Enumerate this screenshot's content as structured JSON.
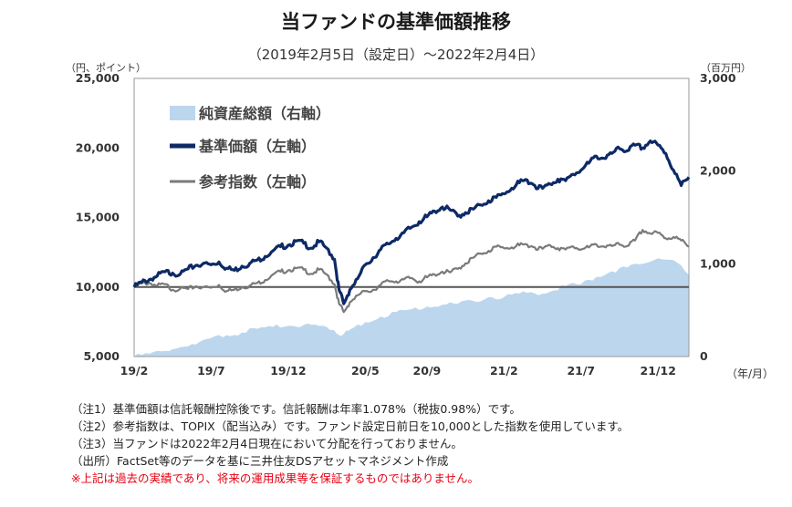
{
  "title": "当ファンドの基準価額推移",
  "subtitle": "（2019年2月5日（設定日）～2022年2月4日）",
  "left_unit": "（円、ポイント）",
  "right_unit": "（百万円）",
  "x_unit": "（年/月）",
  "notes": [
    "（注1）基準価額は信託報酬控除後です。信託報酬は年率1.078%（税抜0.98%）です。",
    "（注2）参考指数は、TOPIX（配当込み）です。ファンド設定日前日を10,000とした指数を使用しています。",
    "（注3）当ファンドは2022年2月4日現在において分配を行っておりません。",
    "（出所）FactSet等のデータを基に三井住友DSアセットマネジメント作成"
  ],
  "disclaimer": "※上記は過去の実績であり、将来の運用成果等を保証するものではありません。",
  "colors": {
    "nav": "#0d2a66",
    "index": "#7a7a7a",
    "assets": "#bcd6ee",
    "baseline": "#555555"
  },
  "chart_data": {
    "type": "line",
    "x_tick_labels": [
      "19/2",
      "19/7",
      "19/12",
      "20/5",
      "20/9",
      "21/2",
      "21/7",
      "21/12"
    ],
    "x_tick_positions": [
      0,
      5,
      10,
      15,
      19,
      24,
      29,
      34
    ],
    "x_range": [
      0,
      36
    ],
    "y_left": {
      "ticks": [
        "5,000",
        "10,000",
        "15,000",
        "20,000",
        "25,000"
      ],
      "tick_values": [
        5000,
        10000,
        15000,
        20000,
        25000
      ],
      "range": [
        5000,
        25000
      ]
    },
    "y_right": {
      "ticks": [
        "0",
        "1,000",
        "2,000",
        "3,000"
      ],
      "tick_values": [
        0,
        1000,
        2000,
        3000
      ],
      "range": [
        0,
        3000
      ]
    },
    "reference_line": 10000,
    "legend": [
      "純資産総額（右軸）",
      "基準価額（左軸）",
      "参考指数（左軸）"
    ],
    "series": [
      {
        "name": "基準価額（左軸）",
        "axis": "left",
        "kind": "line",
        "x": [
          0,
          0.5,
          1,
          1.5,
          2,
          2.5,
          3,
          3.5,
          4,
          4.5,
          5,
          5.5,
          6,
          6.5,
          7,
          7.5,
          8,
          8.5,
          9,
          9.5,
          10,
          10.5,
          11,
          11.5,
          12,
          12.5,
          13,
          13.3,
          13.6,
          14,
          14.5,
          15,
          15.5,
          16,
          16.5,
          17,
          17.5,
          18,
          18.5,
          19,
          19.5,
          20,
          20.5,
          21,
          21.5,
          22,
          22.5,
          23,
          23.5,
          24,
          24.5,
          25,
          25.5,
          26,
          26.5,
          27,
          27.5,
          28,
          28.5,
          29,
          29.5,
          30,
          30.5,
          31,
          31.5,
          32,
          32.5,
          33,
          33.5,
          34,
          34.5,
          35,
          35.5,
          36
        ],
        "y": [
          10000,
          10350,
          10550,
          10800,
          11100,
          11000,
          10950,
          11300,
          11550,
          11700,
          11600,
          11800,
          11350,
          11200,
          11500,
          11700,
          11950,
          12200,
          12600,
          12900,
          13000,
          13300,
          13150,
          12800,
          13250,
          12800,
          12000,
          9800,
          8800,
          9800,
          10600,
          11600,
          12100,
          12700,
          13100,
          13500,
          13900,
          14300,
          14700,
          15050,
          15450,
          15750,
          15550,
          15100,
          15350,
          15600,
          15900,
          16200,
          16450,
          16700,
          17100,
          17500,
          17700,
          17300,
          17100,
          17400,
          17750,
          17650,
          18100,
          18400,
          18900,
          19400,
          19250,
          19600,
          19950,
          19800,
          20200,
          20000,
          20500,
          20200,
          19600,
          18400,
          17300,
          17900
        ]
      },
      {
        "name": "参考指数（左軸）",
        "axis": "left",
        "kind": "line",
        "x": [
          0,
          0.5,
          1,
          1.5,
          2,
          2.5,
          3,
          3.5,
          4,
          4.5,
          5,
          5.5,
          6,
          6.5,
          7,
          7.5,
          8,
          8.5,
          9,
          9.5,
          10,
          10.5,
          11,
          11.5,
          12,
          12.5,
          13,
          13.3,
          13.6,
          14,
          14.5,
          15,
          15.5,
          16,
          16.5,
          17,
          17.5,
          18,
          18.5,
          19,
          19.5,
          20,
          20.5,
          21,
          21.5,
          22,
          22.5,
          23,
          23.5,
          24,
          24.5,
          25,
          25.5,
          26,
          26.5,
          27,
          27.5,
          28,
          28.5,
          29,
          29.5,
          30,
          30.5,
          31,
          31.5,
          32,
          32.5,
          33,
          33.5,
          34,
          34.5,
          35,
          35.5,
          36
        ],
        "y": [
          10000,
          10250,
          10300,
          10100,
          10200,
          9800,
          9900,
          9850,
          10050,
          10000,
          9950,
          10150,
          9700,
          9800,
          10000,
          10100,
          10300,
          10500,
          10900,
          11100,
          11200,
          11350,
          11250,
          10950,
          11250,
          10900,
          10200,
          8800,
          8200,
          8900,
          9400,
          9700,
          9800,
          10150,
          10450,
          10400,
          10550,
          10650,
          10400,
          10700,
          10900,
          11100,
          11050,
          11300,
          11700,
          12100,
          12400,
          12600,
          12900,
          12800,
          12850,
          13000,
          13050,
          12850,
          12750,
          13000,
          12800,
          12700,
          12900,
          12700,
          12850,
          13050,
          12900,
          12950,
          13050,
          12950,
          13350,
          14100,
          13850,
          13900,
          13500,
          13600,
          13350,
          12900
        ]
      },
      {
        "name": "純資産総額（右軸）",
        "axis": "right",
        "kind": "area",
        "x": [
          0,
          1,
          2,
          3,
          4,
          5,
          6,
          7,
          8,
          9,
          10,
          11,
          12,
          12.5,
          13,
          13.5,
          14,
          15,
          16,
          17,
          18,
          19,
          20,
          21,
          22,
          23,
          24,
          25,
          26,
          27,
          28,
          29,
          30,
          31,
          32,
          33,
          34,
          35,
          36
        ],
        "y": [
          0,
          30,
          60,
          100,
          130,
          200,
          230,
          260,
          300,
          320,
          330,
          340,
          330,
          320,
          280,
          230,
          290,
          370,
          430,
          480,
          510,
          540,
          560,
          570,
          600,
          640,
          640,
          680,
          680,
          700,
          760,
          780,
          860,
          920,
          960,
          1000,
          1060,
          1040,
          880
        ]
      }
    ]
  }
}
